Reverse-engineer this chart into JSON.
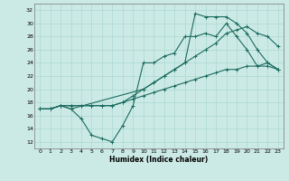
{
  "xlabel": "Humidex (Indice chaleur)",
  "bg_color": "#cceae5",
  "grid_color": "#aad8d0",
  "line_color": "#1a6b60",
  "xlim": [
    -0.5,
    23.5
  ],
  "ylim": [
    11,
    33
  ],
  "xticks": [
    0,
    1,
    2,
    3,
    4,
    5,
    6,
    7,
    8,
    9,
    10,
    11,
    12,
    13,
    14,
    15,
    16,
    17,
    18,
    19,
    20,
    21,
    22,
    23
  ],
  "yticks": [
    12,
    14,
    16,
    18,
    20,
    22,
    24,
    26,
    28,
    30,
    32
  ],
  "series1_x": [
    0,
    1,
    2,
    3,
    4,
    5,
    6,
    7,
    8,
    9,
    10,
    11,
    12,
    13,
    14,
    15,
    16,
    17,
    18,
    19,
    20,
    21,
    22,
    23
  ],
  "series1_y": [
    17,
    17,
    17.5,
    17,
    15.5,
    13,
    12.5,
    12,
    14.5,
    17.5,
    24,
    24,
    25,
    25.5,
    28,
    28,
    28.5,
    28,
    30,
    28,
    26,
    23.5,
    24,
    23
  ],
  "series2_x": [
    0,
    1,
    2,
    3,
    4,
    5,
    6,
    7,
    8,
    9,
    10,
    11,
    12,
    13,
    14,
    15,
    16,
    17,
    18,
    19,
    20,
    21,
    22,
    23
  ],
  "series2_y": [
    17,
    17,
    17.5,
    17.5,
    17.5,
    17.5,
    17.5,
    17.5,
    18,
    19,
    20,
    21,
    22,
    23,
    24,
    25,
    26,
    27,
    28.5,
    29,
    29.5,
    28.5,
    28,
    26.5
  ],
  "series3_x": [
    0,
    1,
    2,
    3,
    4,
    5,
    6,
    7,
    8,
    9,
    10,
    11,
    12,
    13,
    14,
    15,
    16,
    17,
    18,
    19,
    20,
    21,
    22,
    23
  ],
  "series3_y": [
    17,
    17,
    17.5,
    17.5,
    17.5,
    17.5,
    17.5,
    17.5,
    18,
    18.5,
    19,
    19.5,
    20,
    20.5,
    21,
    21.5,
    22,
    22.5,
    23,
    23,
    23.5,
    23.5,
    23.5,
    23
  ],
  "series4_x": [
    0,
    1,
    2,
    3,
    10,
    11,
    12,
    13,
    14,
    15,
    16,
    17,
    18,
    19,
    20,
    21,
    22,
    23
  ],
  "series4_y": [
    17,
    17,
    17.5,
    17,
    20,
    21,
    22,
    23,
    24,
    31.5,
    31,
    31,
    31,
    30,
    28.5,
    26,
    24,
    23
  ]
}
